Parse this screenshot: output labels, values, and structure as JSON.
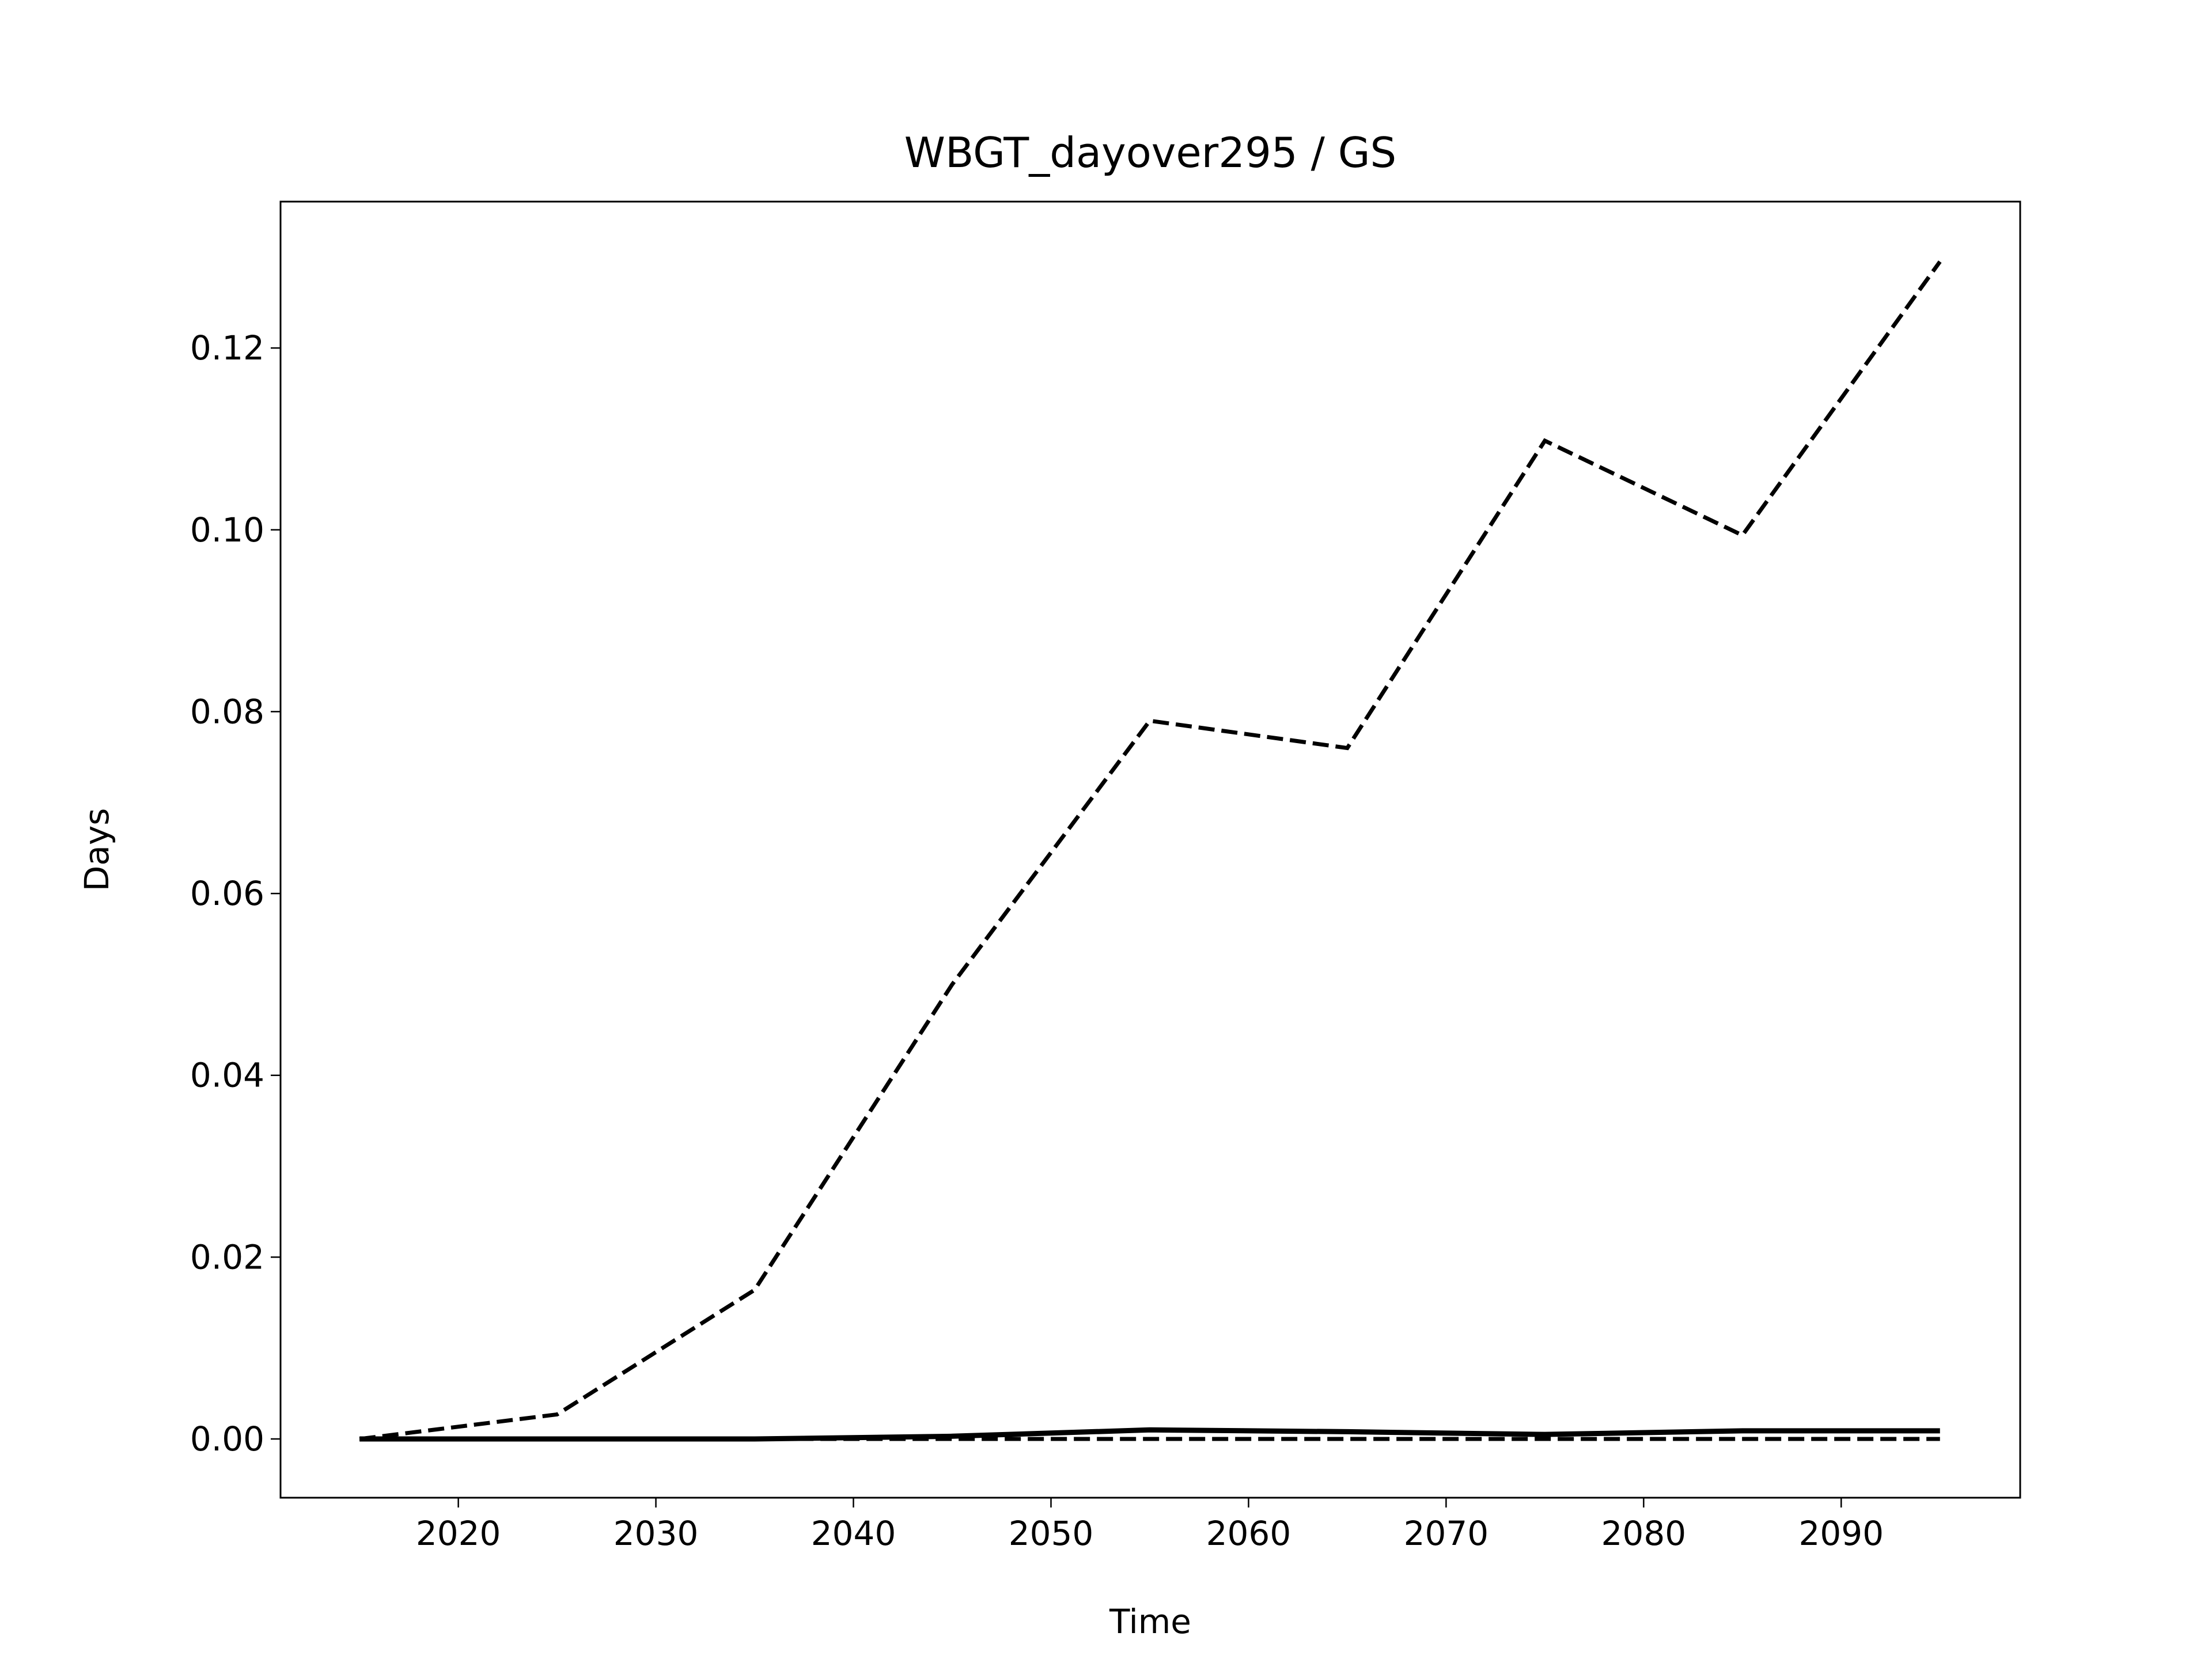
{
  "chart_data": {
    "type": "line",
    "title": "WBGT_dayover295 / GS",
    "x_label": "Time",
    "y_label": "Days",
    "x": [
      2015,
      2025,
      2035,
      2045,
      2055,
      2065,
      2075,
      2085,
      2095
    ],
    "series": [
      {
        "color": "#000000",
        "linestyle": "dashed",
        "values": [
          0,
          0.0027,
          0.0164,
          0.05,
          0.079,
          0.076,
          0.1098,
          0.0994,
          0.1295
        ]
      },
      {
        "color": "#000000",
        "linestyle": "solid",
        "values": [
          0,
          0,
          0,
          0.0003,
          0.001,
          0.0008,
          0.0005,
          0.0009,
          0.0009
        ]
      },
      {
        "color": "#000000",
        "linestyle": "dashed",
        "values": [
          0,
          0,
          0,
          0,
          0,
          0,
          0,
          0,
          0
        ]
      }
    ],
    "xlim": [
      2011,
      2099.06
    ],
    "ylim": [
      -0.00646,
      0.1361
    ],
    "xticks": [
      2020,
      2030,
      2040,
      2050,
      2060,
      2070,
      2080,
      2090
    ],
    "yticks": [
      {
        "value": 0,
        "label": "0.00"
      },
      {
        "value": 0.02,
        "label": "0.02"
      },
      {
        "value": 0.04,
        "label": "0.04"
      },
      {
        "value": 0.06,
        "label": "0.06"
      },
      {
        "value": 0.08,
        "label": "0.08"
      },
      {
        "value": 0.1,
        "label": "0.10"
      },
      {
        "value": 0.12,
        "label": "0.12"
      }
    ]
  }
}
